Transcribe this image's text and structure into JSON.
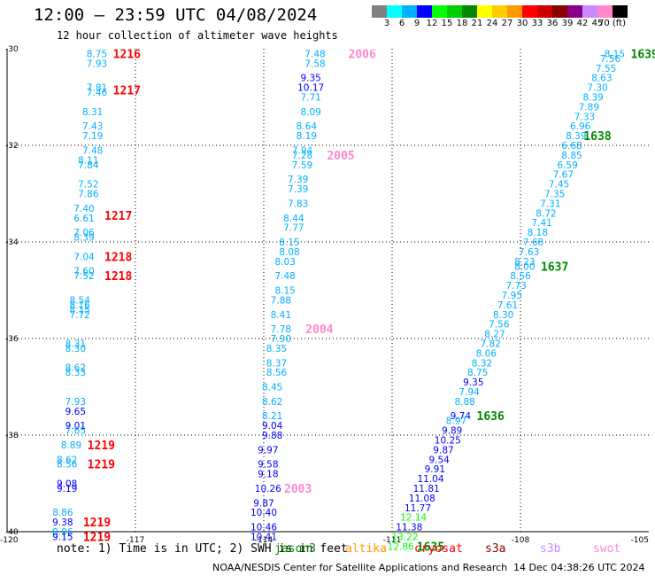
{
  "header": {
    "title": "12:00 – 23:59 UTC 04/08/2024",
    "subtitle": "12 hour collection of altimeter wave heights"
  },
  "colorbar": {
    "colors": [
      "#808080",
      "#00ffff",
      "#00b0ff",
      "#0000ff",
      "#00ff00",
      "#00cc00",
      "#008800",
      "#ffff00",
      "#ffcc00",
      "#ff9900",
      "#ff0000",
      "#cc0000",
      "#880000",
      "#880088",
      "#cc88ff",
      "#ff88cc",
      "#000000"
    ],
    "labels": [
      "3",
      "6",
      "9",
      "12",
      "15",
      "18",
      "21",
      "24",
      "27",
      "30",
      "33",
      "36",
      "39",
      "42",
      "45",
      "70 (ft)"
    ]
  },
  "note": "note: 1) Time is in UTC; 2) SWH is in feet",
  "satellites": [
    {
      "name": "jason3",
      "color": "#008800"
    },
    {
      "name": "altika",
      "color": "#ff9900"
    },
    {
      "name": "cryosat",
      "color": "#ff0000"
    },
    {
      "name": "s3a",
      "color": "#880000"
    },
    {
      "name": "s3b",
      "color": "#cc88ff"
    },
    {
      "name": "swot",
      "color": "#ff88cc"
    }
  ],
  "credit": "NOAA/NESDIS Center for Satellite Applications and Research",
  "stamp": "14 Dec 04:38:26 UTC 2024",
  "chart_data": {
    "type": "scatter",
    "xlim": [
      -120,
      -105
    ],
    "ylim": [
      -40,
      -30
    ],
    "xticks": [
      -120,
      -117,
      -114,
      -111,
      -108,
      -105
    ],
    "yticks": [
      -30,
      -32,
      -34,
      -36,
      -38,
      -40
    ],
    "grid": true,
    "value_colors": [
      {
        "min": 6,
        "max": 9,
        "color": "#00b0ff"
      },
      {
        "min": 9,
        "max": 12,
        "color": "#0000ff"
      },
      {
        "min": 12,
        "max": 15,
        "color": "#00ff00"
      }
    ],
    "points": [
      {
        "x": -117.9,
        "y": -30.1,
        "v": "8.75"
      },
      {
        "x": -117.9,
        "y": -30.3,
        "v": "7.93"
      },
      {
        "x": -117.9,
        "y": -30.8,
        "v": "7.81"
      },
      {
        "x": -117.9,
        "y": -30.9,
        "v": "7.46"
      },
      {
        "x": -118.0,
        "y": -31.3,
        "v": "8.31"
      },
      {
        "x": -118.0,
        "y": -31.6,
        "v": "7.43"
      },
      {
        "x": -118.0,
        "y": -31.8,
        "v": "7.19"
      },
      {
        "x": -118.0,
        "y": -32.1,
        "v": "7.48"
      },
      {
        "x": -118.1,
        "y": -32.3,
        "v": "8.11"
      },
      {
        "x": -118.1,
        "y": -32.4,
        "v": "7.84"
      },
      {
        "x": -118.1,
        "y": -32.8,
        "v": "7.52"
      },
      {
        "x": -118.1,
        "y": -33.0,
        "v": "7.86"
      },
      {
        "x": -118.2,
        "y": -33.3,
        "v": "7.40"
      },
      {
        "x": -118.2,
        "y": -33.5,
        "v": "6.61"
      },
      {
        "x": -118.2,
        "y": -33.8,
        "v": "7.06"
      },
      {
        "x": -118.2,
        "y": -33.9,
        "v": "8.39"
      },
      {
        "x": -118.2,
        "y": -34.3,
        "v": "7.04"
      },
      {
        "x": -118.2,
        "y": -34.6,
        "v": "7.60"
      },
      {
        "x": -118.2,
        "y": -34.7,
        "v": "7.52"
      },
      {
        "x": -118.3,
        "y": -35.2,
        "v": "8.54"
      },
      {
        "x": -118.3,
        "y": -35.3,
        "v": "8.16"
      },
      {
        "x": -118.3,
        "y": -35.4,
        "v": "8.15"
      },
      {
        "x": -118.3,
        "y": -35.5,
        "v": "7.72"
      },
      {
        "x": -118.4,
        "y": -36.1,
        "v": "8.31"
      },
      {
        "x": -118.4,
        "y": -36.2,
        "v": "8.30"
      },
      {
        "x": -118.4,
        "y": -36.6,
        "v": "8.62"
      },
      {
        "x": -118.4,
        "y": -36.7,
        "v": "8.33"
      },
      {
        "x": -118.4,
        "y": -37.3,
        "v": "7.93"
      },
      {
        "x": -118.4,
        "y": -37.5,
        "v": "9.65"
      },
      {
        "x": -118.4,
        "y": -37.8,
        "v": "9.01"
      },
      {
        "x": -118.4,
        "y": -37.9,
        "v": "7.65"
      },
      {
        "x": -118.5,
        "y": -38.2,
        "v": "8.89"
      },
      {
        "x": -118.6,
        "y": -38.5,
        "v": "8.62"
      },
      {
        "x": -118.6,
        "y": -38.6,
        "v": "8.56"
      },
      {
        "x": -118.6,
        "y": -39.0,
        "v": "9.08"
      },
      {
        "x": -118.6,
        "y": -39.1,
        "v": "9.19"
      },
      {
        "x": -118.7,
        "y": -39.6,
        "v": "8.86"
      },
      {
        "x": -118.7,
        "y": -39.8,
        "v": "9.38"
      },
      {
        "x": -118.7,
        "y": -40.0,
        "v": "8.96"
      },
      {
        "x": -118.7,
        "y": -40.1,
        "v": "9.15"
      },
      {
        "x": -112.8,
        "y": -30.1,
        "v": "7.48"
      },
      {
        "x": -112.8,
        "y": -30.3,
        "v": "7.58"
      },
      {
        "x": -112.9,
        "y": -30.6,
        "v": "9.35"
      },
      {
        "x": -112.9,
        "y": -30.8,
        "v": "10.17"
      },
      {
        "x": -112.9,
        "y": -31.0,
        "v": "7.71"
      },
      {
        "x": -112.9,
        "y": -31.3,
        "v": "8.09"
      },
      {
        "x": -113.0,
        "y": -31.6,
        "v": "8.64"
      },
      {
        "x": -113.0,
        "y": -31.8,
        "v": "8.19"
      },
      {
        "x": -113.1,
        "y": -32.1,
        "v": "7.94"
      },
      {
        "x": -113.1,
        "y": -32.2,
        "v": "7.28"
      },
      {
        "x": -113.1,
        "y": -32.4,
        "v": "7.59"
      },
      {
        "x": -113.2,
        "y": -32.7,
        "v": "7.39"
      },
      {
        "x": -113.2,
        "y": -32.9,
        "v": "7.39"
      },
      {
        "x": -113.2,
        "y": -33.2,
        "v": "7.83"
      },
      {
        "x": -113.3,
        "y": -33.5,
        "v": "8.44"
      },
      {
        "x": -113.3,
        "y": -33.7,
        "v": "7.77"
      },
      {
        "x": -113.4,
        "y": -34.0,
        "v": "8.15"
      },
      {
        "x": -113.4,
        "y": -34.2,
        "v": "8.08"
      },
      {
        "x": -113.5,
        "y": -34.4,
        "v": "8.03"
      },
      {
        "x": -113.5,
        "y": -34.7,
        "v": "7.48"
      },
      {
        "x": -113.5,
        "y": -35.0,
        "v": "8.15"
      },
      {
        "x": -113.6,
        "y": -35.2,
        "v": "7.88"
      },
      {
        "x": -113.6,
        "y": -35.5,
        "v": "8.41"
      },
      {
        "x": -113.6,
        "y": -35.8,
        "v": "7.78"
      },
      {
        "x": -113.6,
        "y": -36.0,
        "v": "7.90"
      },
      {
        "x": -113.7,
        "y": -36.2,
        "v": "8.35"
      },
      {
        "x": -113.7,
        "y": -36.5,
        "v": "8.37"
      },
      {
        "x": -113.7,
        "y": -36.7,
        "v": "8.56"
      },
      {
        "x": -113.8,
        "y": -37.0,
        "v": "8.45"
      },
      {
        "x": -113.8,
        "y": -37.3,
        "v": "8.62"
      },
      {
        "x": -113.8,
        "y": -37.6,
        "v": "8.21"
      },
      {
        "x": -113.8,
        "y": -37.8,
        "v": "9.04"
      },
      {
        "x": -113.8,
        "y": -38.0,
        "v": "9.88"
      },
      {
        "x": -113.9,
        "y": -38.3,
        "v": "9.97"
      },
      {
        "x": -113.9,
        "y": -38.6,
        "v": "9.58"
      },
      {
        "x": -113.9,
        "y": -38.8,
        "v": "9.18"
      },
      {
        "x": -113.9,
        "y": -39.1,
        "v": "10.26"
      },
      {
        "x": -114.0,
        "y": -39.4,
        "v": "9.87"
      },
      {
        "x": -114.0,
        "y": -39.6,
        "v": "10.40"
      },
      {
        "x": -114.0,
        "y": -39.9,
        "v": "10.46"
      },
      {
        "x": -114.0,
        "y": -40.1,
        "v": "10.41"
      },
      {
        "x": -105.8,
        "y": -30.1,
        "v": "8.15"
      },
      {
        "x": -105.9,
        "y": -30.2,
        "v": "7.56"
      },
      {
        "x": -106.0,
        "y": -30.4,
        "v": "7.55"
      },
      {
        "x": -106.1,
        "y": -30.6,
        "v": "8.63"
      },
      {
        "x": -106.2,
        "y": -30.8,
        "v": "7.30"
      },
      {
        "x": -106.3,
        "y": -31.0,
        "v": "8.39"
      },
      {
        "x": -106.4,
        "y": -31.2,
        "v": "7.89"
      },
      {
        "x": -106.5,
        "y": -31.4,
        "v": "7.33"
      },
      {
        "x": -106.6,
        "y": -31.6,
        "v": "6.96"
      },
      {
        "x": -106.7,
        "y": -31.8,
        "v": "8.39"
      },
      {
        "x": -106.8,
        "y": -32.0,
        "v": "6.68"
      },
      {
        "x": -106.8,
        "y": -32.2,
        "v": "8.85"
      },
      {
        "x": -106.9,
        "y": -32.4,
        "v": "6.59"
      },
      {
        "x": -107.0,
        "y": -32.6,
        "v": "7.67"
      },
      {
        "x": -107.1,
        "y": -32.8,
        "v": "7.45"
      },
      {
        "x": -107.2,
        "y": -33.0,
        "v": "7.35"
      },
      {
        "x": -107.3,
        "y": -33.2,
        "v": "7.31"
      },
      {
        "x": -107.4,
        "y": -33.4,
        "v": "8.72"
      },
      {
        "x": -107.5,
        "y": -33.6,
        "v": "7.41"
      },
      {
        "x": -107.6,
        "y": -33.8,
        "v": "8.18"
      },
      {
        "x": -107.7,
        "y": -34.0,
        "v": "7.68"
      },
      {
        "x": -107.8,
        "y": -34.2,
        "v": "7.63"
      },
      {
        "x": -107.9,
        "y": -34.4,
        "v": "8.23"
      },
      {
        "x": -107.9,
        "y": -34.5,
        "v": "8.00"
      },
      {
        "x": -108.0,
        "y": -34.7,
        "v": "8.56"
      },
      {
        "x": -108.1,
        "y": -34.9,
        "v": "7.73"
      },
      {
        "x": -108.2,
        "y": -35.1,
        "v": "7.95"
      },
      {
        "x": -108.3,
        "y": -35.3,
        "v": "7.61"
      },
      {
        "x": -108.4,
        "y": -35.5,
        "v": "8.30"
      },
      {
        "x": -108.5,
        "y": -35.7,
        "v": "7.56"
      },
      {
        "x": -108.6,
        "y": -35.9,
        "v": "8.27"
      },
      {
        "x": -108.7,
        "y": -36.1,
        "v": "7.82"
      },
      {
        "x": -108.8,
        "y": -36.3,
        "v": "8.06"
      },
      {
        "x": -108.9,
        "y": -36.5,
        "v": "8.32"
      },
      {
        "x": -109.0,
        "y": -36.7,
        "v": "8.75"
      },
      {
        "x": -109.1,
        "y": -36.9,
        "v": "9.35"
      },
      {
        "x": -109.2,
        "y": -37.1,
        "v": "7.94"
      },
      {
        "x": -109.3,
        "y": -37.3,
        "v": "8.88"
      },
      {
        "x": -109.4,
        "y": -37.6,
        "v": "9.74"
      },
      {
        "x": -109.5,
        "y": -37.7,
        "v": "8.97"
      },
      {
        "x": -109.6,
        "y": -37.9,
        "v": "9.89"
      },
      {
        "x": -109.7,
        "y": -38.1,
        "v": "10.25"
      },
      {
        "x": -109.8,
        "y": -38.3,
        "v": "9.87"
      },
      {
        "x": -109.9,
        "y": -38.5,
        "v": "9.54"
      },
      {
        "x": -110.0,
        "y": -38.7,
        "v": "9.91"
      },
      {
        "x": -110.1,
        "y": -38.9,
        "v": "11.04"
      },
      {
        "x": -110.2,
        "y": -39.1,
        "v": "11.81"
      },
      {
        "x": -110.3,
        "y": -39.3,
        "v": "11.08"
      },
      {
        "x": -110.4,
        "y": -39.5,
        "v": "11.77"
      },
      {
        "x": -110.5,
        "y": -39.7,
        "v": "12.14"
      },
      {
        "x": -110.6,
        "y": -39.9,
        "v": "11.38"
      },
      {
        "x": -110.7,
        "y": -40.1,
        "v": "13.22"
      },
      {
        "x": -110.8,
        "y": -40.3,
        "v": "12.86"
      }
    ],
    "pass_labels": [
      {
        "x": -117.2,
        "y": -30.1,
        "text": "1216",
        "color": "#ff0000"
      },
      {
        "x": -117.2,
        "y": -30.85,
        "text": "1217",
        "color": "#ff0000"
      },
      {
        "x": -117.4,
        "y": -33.45,
        "text": "1217",
        "color": "#ff0000"
      },
      {
        "x": -117.4,
        "y": -34.3,
        "text": "1218",
        "color": "#ff0000"
      },
      {
        "x": -117.4,
        "y": -34.7,
        "text": "1218",
        "color": "#ff0000"
      },
      {
        "x": -117.8,
        "y": -38.2,
        "text": "1219",
        "color": "#ff0000"
      },
      {
        "x": -117.8,
        "y": -38.6,
        "text": "1219",
        "color": "#ff0000"
      },
      {
        "x": -117.9,
        "y": -39.8,
        "text": "1219",
        "color": "#ff0000"
      },
      {
        "x": -117.9,
        "y": -40.1,
        "text": "1219",
        "color": "#ff0000"
      },
      {
        "x": -111.7,
        "y": -30.1,
        "text": "2006",
        "color": "#ff88cc"
      },
      {
        "x": -112.2,
        "y": -32.2,
        "text": "2005",
        "color": "#ff88cc"
      },
      {
        "x": -112.7,
        "y": -35.8,
        "text": "2004",
        "color": "#ff88cc"
      },
      {
        "x": -113.2,
        "y": -39.1,
        "text": "2003",
        "color": "#ff88cc"
      },
      {
        "x": -105.1,
        "y": -30.1,
        "text": "1639",
        "color": "#008800"
      },
      {
        "x": -106.2,
        "y": -31.8,
        "text": "1638",
        "color": "#008800"
      },
      {
        "x": -107.2,
        "y": -34.5,
        "text": "1637",
        "color": "#008800"
      },
      {
        "x": -108.7,
        "y": -37.6,
        "text": "1636",
        "color": "#008800"
      },
      {
        "x": -110.1,
        "y": -40.3,
        "text": "1635",
        "color": "#008800"
      }
    ]
  }
}
